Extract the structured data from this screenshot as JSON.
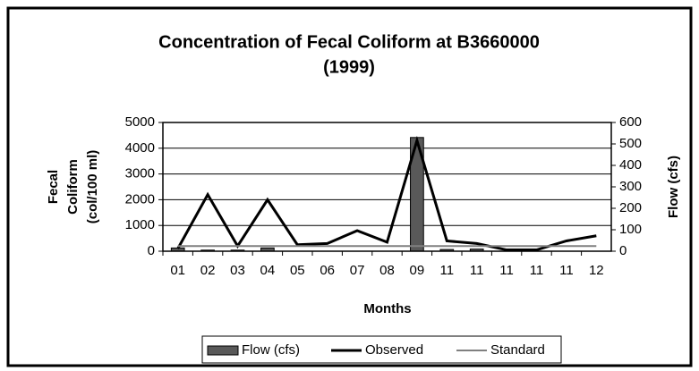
{
  "chart_data": {
    "type": "combo",
    "title": "Concentration of Fecal Coliform at B3660000",
    "subtitle": "(1999)",
    "x_label": "Months",
    "y_label": [
      "Fecal",
      "Coliform",
      "(col/100 ml)"
    ],
    "y2_label": "Flow (cfs)",
    "categories": [
      "01",
      "02",
      "03",
      "04",
      "05",
      "06",
      "07",
      "08",
      "09",
      "11",
      "11",
      "11",
      "11",
      "11",
      "12"
    ],
    "series": [
      {
        "name": "Flow (cfs)",
        "type": "bar",
        "axis": "y2",
        "color": "#595959",
        "values": [
          15,
          5,
          5,
          15,
          0,
          0,
          0,
          0,
          530,
          8,
          10,
          0,
          0,
          0,
          0
        ]
      },
      {
        "name": "Observed",
        "type": "line",
        "color": "#000000",
        "values": [
          100,
          2200,
          200,
          2000,
          250,
          300,
          800,
          350,
          4300,
          400,
          300,
          50,
          50,
          400,
          600
        ]
      },
      {
        "name": "Standard",
        "type": "line",
        "color": "#808080",
        "values": [
          200,
          200,
          200,
          200,
          200,
          200,
          200,
          200,
          200,
          200,
          200,
          200,
          200,
          200,
          200
        ]
      }
    ],
    "ylim": [
      0,
      5000
    ],
    "yticks": [
      0,
      1000,
      2000,
      3000,
      4000,
      5000
    ],
    "y2lim": [
      0,
      600
    ],
    "y2ticks": [
      0,
      100,
      200,
      300,
      400,
      500,
      600
    ],
    "grid": true,
    "legend": "bottom"
  }
}
